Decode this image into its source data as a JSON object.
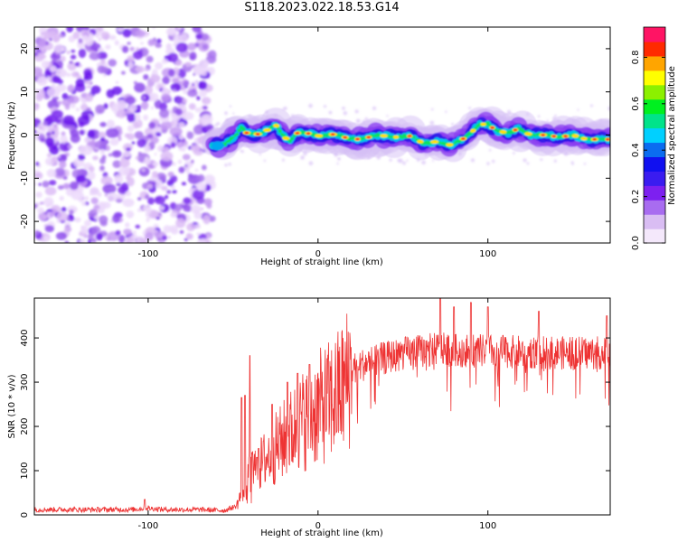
{
  "figure": {
    "title": "S118.2023.022.18.53.G14"
  },
  "chart_data": [
    {
      "type": "heatmap",
      "xlabel": "Height of straight line (km)",
      "ylabel": "Frequency (Hz)",
      "xlim": [
        -167,
        172
      ],
      "ylim": [
        -25,
        25
      ],
      "x_ticks": [
        -100,
        0,
        100
      ],
      "y_ticks": [
        -20,
        -10,
        0,
        10,
        20
      ],
      "noise_region_x": [
        -167,
        -62
      ],
      "signal_start_x": -62,
      "signal_track": [
        [
          -62,
          -2.5
        ],
        [
          -55,
          -2
        ],
        [
          -48,
          0
        ],
        [
          -45,
          2
        ],
        [
          -42,
          0.5
        ],
        [
          -35,
          0.2
        ],
        [
          -28,
          1.5
        ],
        [
          -25,
          2.5
        ],
        [
          -22,
          0.5
        ],
        [
          -17,
          -1.5
        ],
        [
          -12,
          0.5
        ],
        [
          -7,
          0.5
        ],
        [
          0,
          -0.2
        ],
        [
          10,
          0.2
        ],
        [
          18,
          -0.8
        ],
        [
          25,
          -1
        ],
        [
          35,
          0
        ],
        [
          45,
          -0.5
        ],
        [
          55,
          -0.2
        ],
        [
          62,
          -2
        ],
        [
          70,
          -1.5
        ],
        [
          78,
          -2.3
        ],
        [
          85,
          -1
        ],
        [
          90,
          0.5
        ],
        [
          95,
          2.5
        ],
        [
          100,
          2.5
        ],
        [
          105,
          1
        ],
        [
          112,
          0.5
        ],
        [
          118,
          1.5
        ],
        [
          125,
          0
        ],
        [
          135,
          0
        ],
        [
          142,
          -0.5
        ],
        [
          150,
          0
        ],
        [
          158,
          -1
        ],
        [
          166,
          -1
        ],
        [
          172,
          -1
        ]
      ],
      "colorbar": {
        "label": "Normalized spectral amplitude",
        "range": [
          0,
          0.93
        ],
        "ticks": [
          "0.0",
          "0.2",
          "0.4",
          "0.6",
          "0.8"
        ],
        "colors": [
          "#f4e8fb",
          "#d9bdf3",
          "#a86cf0",
          "#7d20f0",
          "#3a1cf0",
          "#1010f0",
          "#0b6cf0",
          "#00d0ff",
          "#00e38a",
          "#00f020",
          "#8cf000",
          "#ffff00",
          "#ffa500",
          "#ff2a00",
          "#ff1464"
        ]
      }
    },
    {
      "type": "line",
      "xlabel": "Height of straight line (km)",
      "ylabel": "SNR (10 * v/v)",
      "xlim": [
        -167,
        172
      ],
      "ylim": [
        0,
        490
      ],
      "x_ticks": [
        -100,
        0,
        100
      ],
      "y_ticks": [
        0,
        100,
        200,
        300,
        400
      ],
      "color": "#ee3333",
      "envelope": [
        [
          -167,
          12
        ],
        [
          -110,
          12
        ],
        [
          -100,
          15
        ],
        [
          -90,
          12
        ],
        [
          -70,
          12
        ],
        [
          -55,
          10
        ],
        [
          -48,
          20
        ],
        [
          -45,
          50
        ],
        [
          -40,
          100
        ],
        [
          -35,
          110
        ],
        [
          -30,
          130
        ],
        [
          -20,
          170
        ],
        [
          -10,
          210
        ],
        [
          0,
          240
        ],
        [
          10,
          265
        ],
        [
          15,
          290
        ],
        [
          20,
          330
        ],
        [
          30,
          345
        ],
        [
          40,
          355
        ],
        [
          50,
          365
        ],
        [
          60,
          370
        ],
        [
          70,
          375
        ],
        [
          80,
          372
        ],
        [
          100,
          370
        ],
        [
          120,
          368
        ],
        [
          140,
          366
        ],
        [
          172,
          366
        ]
      ],
      "spikes": [
        [
          -102,
          35
        ],
        [
          -45,
          265
        ],
        [
          -43,
          270
        ],
        [
          -40,
          360
        ],
        [
          -36,
          130
        ],
        [
          -35,
          150
        ],
        [
          -27,
          250
        ],
        [
          -18,
          300
        ],
        [
          -12,
          320
        ],
        [
          -5,
          340
        ],
        [
          72,
          490
        ],
        [
          80,
          470
        ],
        [
          90,
          480
        ],
        [
          100,
          470
        ],
        [
          130,
          460
        ],
        [
          170,
          450
        ]
      ]
    }
  ]
}
